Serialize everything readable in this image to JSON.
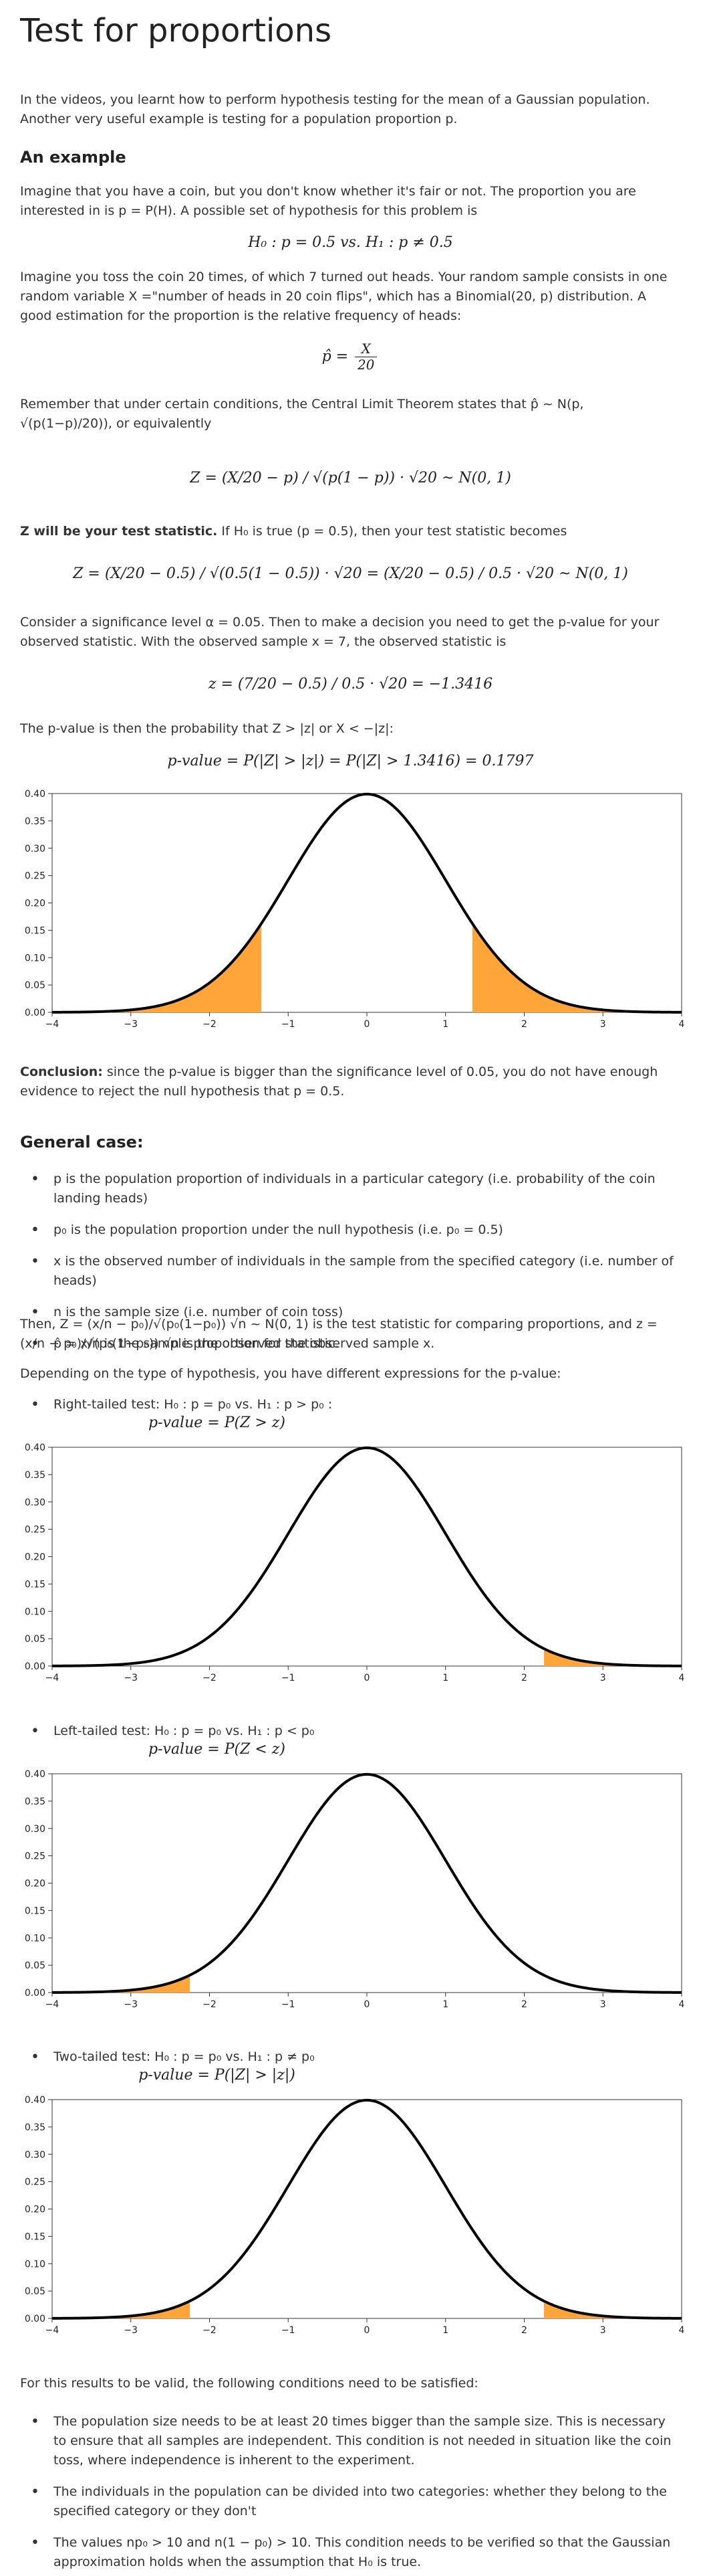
{
  "title": "Test for proportions",
  "intro": "In the videos, you learnt how to perform hypothesis testing for the mean of a Gaussian population. Another very useful example is testing for a population proportion p.",
  "example_heading": "An example",
  "example": {
    "p1": "Imagine that you have a coin, but you don't know whether it's fair or not. The proportion you are interested in is p = P(H). A possible set of hypothesis for this problem is",
    "hyp": "H₀ : p = 0.5  vs.  H₁ : p ≠ 0.5",
    "p2": "Imagine you toss the coin 20 times, of which 7 turned out heads. Your random sample consists in one random variable X =\"number of heads in 20 coin flips\", which has a Binomial(20, p) distribution. A good estimation for the proportion is the relative frequency of heads:",
    "phat_lhs": "p̂ =",
    "phat_num": "X",
    "phat_den": "20",
    "p3": "Remember that under certain conditions,  the Central Limit Theorem states that p̂ ~ N(p, √(p(1−p)/20)), or equivalently",
    "z_eq": "Z =  (X/20 − p) / √(p(1 − p))  · √20 ~ N(0, 1)",
    "p4_bold": "Z will be your test statistic.",
    "p4_rest": " If H₀ is true (p = 0.5), then your test statistic becomes",
    "z_h0": "Z = (X/20 − 0.5) / √(0.5(1 − 0.5)) · √20 = (X/20 − 0.5) / 0.5 · √20 ~ N(0, 1)",
    "p5": "Consider a significance level α = 0.05. Then to make a decision you need to get the p-value for your observed statistic. With the observed sample x = 7, the observed statistic is",
    "z_obs": "z = (7/20 − 0.5) / 0.5 · √20 = −1.3416",
    "p6": "The p-value is then the probability that Z > |z| or X < −|z|:",
    "pval": "p-value = P(|Z| > |z|) = P(|Z| > 1.3416) = 0.1797",
    "conclusion_bold": "Conclusion:",
    "conclusion_rest": " since the p-value is bigger than the significance level of 0.05, you do not have enough evidence to reject the null hypothesis that p = 0.5."
  },
  "general_heading": "General case:",
  "general_items": [
    "p is the population proportion of individuals in a particular category (i.e. probability of the coin landing heads)",
    "p₀ is the population proportion under the null hypothesis (i.e. p₀ = 0.5)",
    "x is the observed number of individuals in the sample from the specified category  (i.e. number of heads)",
    "n is the sample size (i.e. number of coin toss)",
    "p̂ = x/n is the sample proportion for the observed sample x."
  ],
  "general_text1": "Then, Z = (x/n − p₀)/√(p₀(1−p₀)) √n ~ N(0, 1) is the test statistic for comparing proportions, and z = (x/n − p₀)/√(p₀(1−p₀)) √n is the observed statistic.",
  "general_text2": "Depending on the type of hypothesis, you have different expressions for the p-value:",
  "tests": [
    {
      "label": "Right-tailed test: H₀ : p = p₀  vs.  H₁ : p > p₀ :",
      "pv": "p-value = P(Z > z)"
    },
    {
      "label": "Left-tailed test: H₀ : p = p₀  vs.  H₁ : p < p₀",
      "pv": "p-value = P(Z < z)"
    },
    {
      "label": "Two-tailed test: H₀ : p = p₀  vs.  H₁ : p ≠ p₀",
      "pv": "p-value = P(|Z| > |z|)"
    }
  ],
  "conditions_intro": "For this results to be valid, the following conditions need to be satisfied:",
  "conditions": [
    "The population size needs to be at least 20 times bigger than the sample size. This is necessary to ensure that all samples are independent. This condition is not needed in situation like the coin toss, where independence is inherent to the experiment.",
    "The individuals in the population can be divided into two categories: whether they belong to the specified category or they don't",
    "The values np₀ > 10 and n(1 − p₀) > 10. This condition needs to be verified so that the Gaussian approximation holds when the assumption that H₀ is true."
  ],
  "colors": {
    "fill": "#ffa53a",
    "curve": "#000000",
    "text": "#333333"
  },
  "chart_data": [
    {
      "type": "area",
      "x_range": [
        -4,
        4
      ],
      "ylim": [
        0,
        0.4
      ],
      "xticks": [
        "−4",
        "−3",
        "−2",
        "−1",
        "0",
        "1",
        "2",
        "3",
        "4"
      ],
      "yticks": [
        "0.00",
        "0.05",
        "0.10",
        "0.15",
        "0.20",
        "0.25",
        "0.30",
        "0.35",
        "0.40"
      ],
      "curve": "standard normal pdf",
      "shaded": [
        [
          -4,
          -1.3416
        ],
        [
          1.3416,
          4
        ]
      ]
    },
    {
      "type": "area",
      "x_range": [
        -4,
        4
      ],
      "ylim": [
        0,
        0.4
      ],
      "xticks": [
        "−4",
        "−3",
        "−2",
        "−1",
        "0",
        "1",
        "2",
        "3",
        "4"
      ],
      "yticks": [
        "0.00",
        "0.05",
        "0.10",
        "0.15",
        "0.20",
        "0.25",
        "0.30",
        "0.35",
        "0.40"
      ],
      "curve": "standard normal pdf",
      "shaded": [
        [
          2.25,
          4
        ]
      ]
    },
    {
      "type": "area",
      "x_range": [
        -4,
        4
      ],
      "ylim": [
        0,
        0.4
      ],
      "xticks": [
        "−4",
        "−3",
        "−2",
        "−1",
        "0",
        "1",
        "2",
        "3",
        "4"
      ],
      "yticks": [
        "0.00",
        "0.05",
        "0.10",
        "0.15",
        "0.20",
        "0.25",
        "0.30",
        "0.35",
        "0.40"
      ],
      "curve": "standard normal pdf",
      "shaded": [
        [
          -4,
          -2.25
        ]
      ]
    },
    {
      "type": "area",
      "x_range": [
        -4,
        4
      ],
      "ylim": [
        0,
        0.4
      ],
      "xticks": [
        "−4",
        "−3",
        "−2",
        "−1",
        "0",
        "1",
        "2",
        "3",
        "4"
      ],
      "yticks": [
        "0.00",
        "0.05",
        "0.10",
        "0.15",
        "0.20",
        "0.25",
        "0.30",
        "0.35",
        "0.40"
      ],
      "curve": "standard normal pdf",
      "shaded": [
        [
          -4,
          -2.25
        ],
        [
          2.25,
          4
        ]
      ]
    }
  ]
}
